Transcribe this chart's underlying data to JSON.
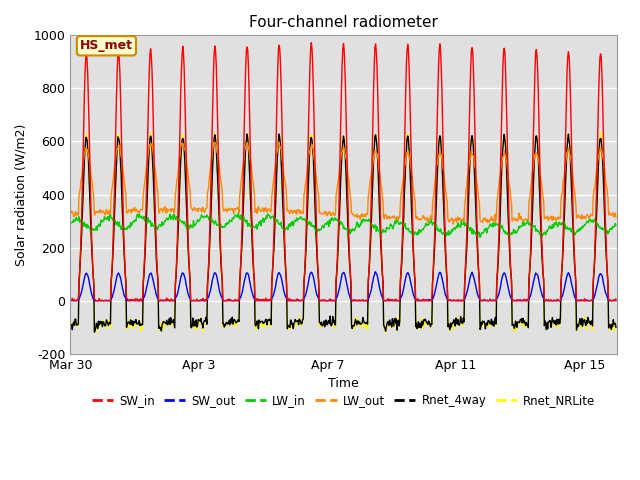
{
  "title": "Four-channel radiometer",
  "xlabel": "Time",
  "ylabel": "Solar radiation (W/m2)",
  "ylim": [
    -200,
    1000
  ],
  "xlim_days": [
    0,
    17
  ],
  "annotation": "HS_met",
  "plot_bg_color": "#e0e0e0",
  "fig_bg_color": "#ffffff",
  "grid_color": "#cccccc",
  "series": {
    "SW_in": {
      "color": "#ff0000",
      "lw": 1.0
    },
    "SW_out": {
      "color": "#0000ff",
      "lw": 1.0
    },
    "LW_in": {
      "color": "#00cc00",
      "lw": 1.0
    },
    "LW_out": {
      "color": "#ff8800",
      "lw": 1.0
    },
    "Rnet_4way": {
      "color": "#000000",
      "lw": 1.0
    },
    "Rnet_NRLite": {
      "color": "#ffff00",
      "lw": 1.0
    }
  },
  "xtick_labels": [
    "Mar 30",
    "Apr 3",
    "Apr 7",
    "Apr 11",
    "Apr 15"
  ],
  "xtick_positions": [
    0,
    4,
    8,
    12,
    16
  ],
  "ytick_labels": [
    "-200",
    "0",
    "200",
    "400",
    "600",
    "800",
    "1000"
  ],
  "ytick_positions": [
    -200,
    0,
    200,
    400,
    600,
    800,
    1000
  ]
}
